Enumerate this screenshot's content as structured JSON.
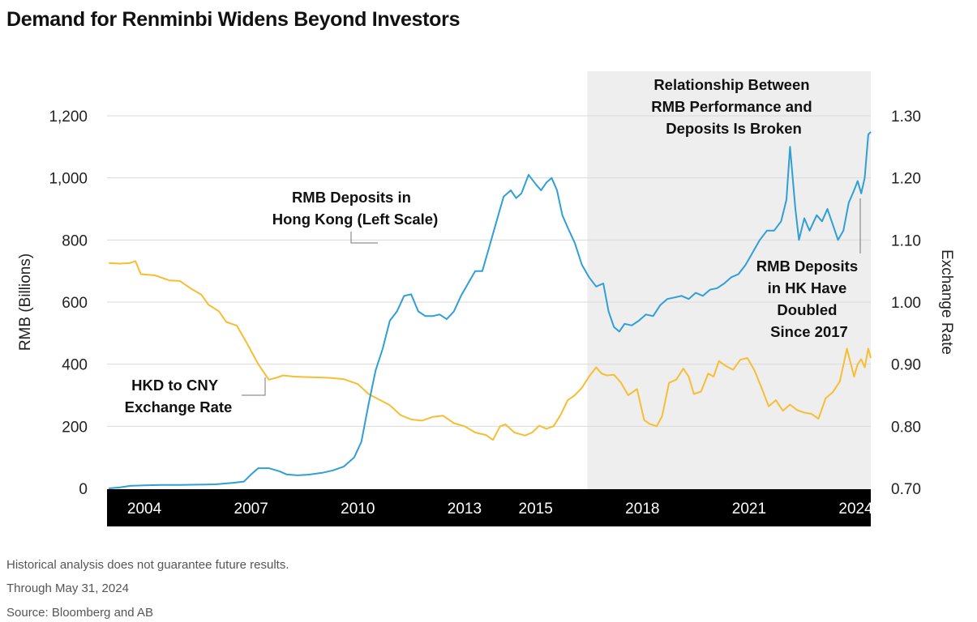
{
  "title": "Demand for Renminbi Widens Beyond Investors",
  "footer": {
    "disclaimer": "Historical analysis does not guarantee future results.",
    "through": "Through May 31, 2024",
    "source": "Source: Bloomberg and AB"
  },
  "colors": {
    "deposits": "#2f9fd6",
    "exchange": "#f6be33",
    "shade": "#eeeeee",
    "xband": "#000000",
    "grid": "#d9d9d9"
  },
  "chart_data": {
    "type": "line",
    "xlim": [
      2002.95,
      2024.42
    ],
    "shade_start": 2016.45,
    "x_ticks": [
      {
        "value": 2004,
        "label": "2004"
      },
      {
        "value": 2007,
        "label": "2007"
      },
      {
        "value": 2010,
        "label": "2010"
      },
      {
        "value": 2013,
        "label": "2013"
      },
      {
        "value": 2015,
        "label": "2015"
      },
      {
        "value": 2018,
        "label": "2018"
      },
      {
        "value": 2021,
        "label": "2021"
      },
      {
        "value": 2024,
        "label": "2024"
      }
    ],
    "y_left": {
      "label": "RMB (Billions)",
      "lim": [
        0,
        1200
      ],
      "ticks": [
        {
          "value": 0,
          "label": "0"
        },
        {
          "value": 200,
          "label": "200"
        },
        {
          "value": 400,
          "label": "400"
        },
        {
          "value": 600,
          "label": "600"
        },
        {
          "value": 800,
          "label": "800"
        },
        {
          "value": 1000,
          "label": "1,000"
        },
        {
          "value": 1200,
          "label": "1,200"
        }
      ]
    },
    "y_right": {
      "label": "Exchange Rate",
      "lim": [
        0.7,
        1.3
      ],
      "ticks": [
        {
          "value": 0.7,
          "label": "0.70"
        },
        {
          "value": 0.8,
          "label": "0.80"
        },
        {
          "value": 0.9,
          "label": "0.90"
        },
        {
          "value": 1.0,
          "label": "1.00"
        },
        {
          "value": 1.1,
          "label": "1.10"
        },
        {
          "value": 1.2,
          "label": "1.20"
        },
        {
          "value": 1.3,
          "label": "1.30"
        }
      ]
    },
    "annotations": {
      "deposits_label": [
        "RMB Deposits in",
        "Hong Kong (Left Scale)"
      ],
      "hkd_label": [
        "HKD to CNY",
        "Exchange Rate"
      ],
      "relationship": [
        "Relationship Between",
        "RMB Performance and",
        "Deposits Is Broken"
      ],
      "doubled": [
        "RMB Deposits",
        "in HK Have",
        "Doubled",
        "Since 2017"
      ]
    },
    "series": [
      {
        "key": "deposits",
        "axis": "left",
        "points": [
          [
            2003.0,
            0
          ],
          [
            2003.3,
            3
          ],
          [
            2003.6,
            8
          ],
          [
            2004.0,
            10
          ],
          [
            2004.5,
            11
          ],
          [
            2005.0,
            11
          ],
          [
            2005.5,
            12
          ],
          [
            2006.0,
            13
          ],
          [
            2006.5,
            18
          ],
          [
            2006.8,
            22
          ],
          [
            2007.0,
            45
          ],
          [
            2007.2,
            65
          ],
          [
            2007.5,
            65
          ],
          [
            2007.8,
            55
          ],
          [
            2008.0,
            45
          ],
          [
            2008.3,
            42
          ],
          [
            2008.6,
            44
          ],
          [
            2009.0,
            50
          ],
          [
            2009.3,
            58
          ],
          [
            2009.6,
            70
          ],
          [
            2009.9,
            100
          ],
          [
            2010.1,
            150
          ],
          [
            2010.3,
            270
          ],
          [
            2010.5,
            380
          ],
          [
            2010.7,
            450
          ],
          [
            2010.9,
            540
          ],
          [
            2011.1,
            570
          ],
          [
            2011.3,
            620
          ],
          [
            2011.5,
            625
          ],
          [
            2011.7,
            570
          ],
          [
            2011.9,
            555
          ],
          [
            2012.1,
            555
          ],
          [
            2012.3,
            560
          ],
          [
            2012.5,
            545
          ],
          [
            2012.7,
            570
          ],
          [
            2012.9,
            620
          ],
          [
            2013.1,
            660
          ],
          [
            2013.3,
            700
          ],
          [
            2013.5,
            700
          ],
          [
            2013.7,
            780
          ],
          [
            2013.9,
            860
          ],
          [
            2014.1,
            940
          ],
          [
            2014.3,
            960
          ],
          [
            2014.45,
            935
          ],
          [
            2014.6,
            950
          ],
          [
            2014.8,
            1010
          ],
          [
            2015.0,
            980
          ],
          [
            2015.15,
            960
          ],
          [
            2015.3,
            985
          ],
          [
            2015.45,
            1000
          ],
          [
            2015.6,
            960
          ],
          [
            2015.75,
            880
          ],
          [
            2015.9,
            840
          ],
          [
            2016.1,
            790
          ],
          [
            2016.3,
            720
          ],
          [
            2016.5,
            680
          ],
          [
            2016.7,
            650
          ],
          [
            2016.9,
            660
          ],
          [
            2017.05,
            570
          ],
          [
            2017.2,
            520
          ],
          [
            2017.35,
            505
          ],
          [
            2017.5,
            530
          ],
          [
            2017.7,
            525
          ],
          [
            2017.9,
            540
          ],
          [
            2018.1,
            560
          ],
          [
            2018.3,
            555
          ],
          [
            2018.5,
            590
          ],
          [
            2018.7,
            610
          ],
          [
            2018.9,
            615
          ],
          [
            2019.1,
            620
          ],
          [
            2019.3,
            610
          ],
          [
            2019.5,
            630
          ],
          [
            2019.7,
            620
          ],
          [
            2019.9,
            640
          ],
          [
            2020.1,
            645
          ],
          [
            2020.3,
            660
          ],
          [
            2020.5,
            680
          ],
          [
            2020.7,
            690
          ],
          [
            2020.9,
            720
          ],
          [
            2021.1,
            760
          ],
          [
            2021.3,
            800
          ],
          [
            2021.5,
            830
          ],
          [
            2021.7,
            830
          ],
          [
            2021.9,
            860
          ],
          [
            2022.05,
            930
          ],
          [
            2022.15,
            1100
          ],
          [
            2022.3,
            900
          ],
          [
            2022.4,
            800
          ],
          [
            2022.55,
            870
          ],
          [
            2022.7,
            830
          ],
          [
            2022.9,
            880
          ],
          [
            2023.05,
            860
          ],
          [
            2023.2,
            900
          ],
          [
            2023.35,
            850
          ],
          [
            2023.5,
            800
          ],
          [
            2023.65,
            830
          ],
          [
            2023.8,
            920
          ],
          [
            2023.95,
            960
          ],
          [
            2024.05,
            990
          ],
          [
            2024.15,
            950
          ],
          [
            2024.25,
            1000
          ],
          [
            2024.35,
            1140
          ],
          [
            2024.42,
            1148
          ]
        ]
      },
      {
        "key": "exchange",
        "axis": "right",
        "points": [
          [
            2003.0,
            1.063
          ],
          [
            2003.3,
            1.062
          ],
          [
            2003.6,
            1.063
          ],
          [
            2003.75,
            1.066
          ],
          [
            2003.9,
            1.045
          ],
          [
            2004.3,
            1.043
          ],
          [
            2004.7,
            1.035
          ],
          [
            2005.0,
            1.034
          ],
          [
            2005.3,
            1.022
          ],
          [
            2005.6,
            1.012
          ],
          [
            2005.8,
            0.996
          ],
          [
            2006.1,
            0.985
          ],
          [
            2006.3,
            0.968
          ],
          [
            2006.6,
            0.962
          ],
          [
            2006.9,
            0.932
          ],
          [
            2007.2,
            0.9
          ],
          [
            2007.5,
            0.875
          ],
          [
            2007.7,
            0.878
          ],
          [
            2007.9,
            0.882
          ],
          [
            2008.2,
            0.88
          ],
          [
            2008.7,
            0.879
          ],
          [
            2009.2,
            0.878
          ],
          [
            2009.6,
            0.876
          ],
          [
            2010.0,
            0.868
          ],
          [
            2010.3,
            0.852
          ],
          [
            2010.6,
            0.843
          ],
          [
            2010.9,
            0.834
          ],
          [
            2011.2,
            0.818
          ],
          [
            2011.5,
            0.811
          ],
          [
            2011.8,
            0.809
          ],
          [
            2012.1,
            0.815
          ],
          [
            2012.4,
            0.817
          ],
          [
            2012.7,
            0.805
          ],
          [
            2013.0,
            0.8
          ],
          [
            2013.3,
            0.79
          ],
          [
            2013.6,
            0.786
          ],
          [
            2013.8,
            0.778
          ],
          [
            2014.0,
            0.8
          ],
          [
            2014.15,
            0.803
          ],
          [
            2014.4,
            0.79
          ],
          [
            2014.7,
            0.785
          ],
          [
            2014.9,
            0.79
          ],
          [
            2015.1,
            0.801
          ],
          [
            2015.3,
            0.796
          ],
          [
            2015.5,
            0.8
          ],
          [
            2015.7,
            0.818
          ],
          [
            2015.9,
            0.842
          ],
          [
            2016.1,
            0.85
          ],
          [
            2016.3,
            0.862
          ],
          [
            2016.5,
            0.88
          ],
          [
            2016.7,
            0.895
          ],
          [
            2016.85,
            0.885
          ],
          [
            2017.0,
            0.882
          ],
          [
            2017.2,
            0.883
          ],
          [
            2017.4,
            0.87
          ],
          [
            2017.6,
            0.85
          ],
          [
            2017.85,
            0.86
          ],
          [
            2018.05,
            0.81
          ],
          [
            2018.2,
            0.804
          ],
          [
            2018.4,
            0.8
          ],
          [
            2018.55,
            0.816
          ],
          [
            2018.75,
            0.87
          ],
          [
            2018.95,
            0.875
          ],
          [
            2019.15,
            0.893
          ],
          [
            2019.3,
            0.88
          ],
          [
            2019.45,
            0.852
          ],
          [
            2019.65,
            0.856
          ],
          [
            2019.85,
            0.885
          ],
          [
            2020.0,
            0.88
          ],
          [
            2020.15,
            0.905
          ],
          [
            2020.35,
            0.897
          ],
          [
            2020.55,
            0.891
          ],
          [
            2020.75,
            0.907
          ],
          [
            2020.95,
            0.91
          ],
          [
            2021.15,
            0.89
          ],
          [
            2021.35,
            0.862
          ],
          [
            2021.55,
            0.832
          ],
          [
            2021.75,
            0.842
          ],
          [
            2021.95,
            0.825
          ],
          [
            2022.15,
            0.835
          ],
          [
            2022.35,
            0.826
          ],
          [
            2022.55,
            0.822
          ],
          [
            2022.75,
            0.82
          ],
          [
            2022.95,
            0.812
          ],
          [
            2023.15,
            0.845
          ],
          [
            2023.35,
            0.855
          ],
          [
            2023.55,
            0.872
          ],
          [
            2023.75,
            0.925
          ],
          [
            2023.95,
            0.88
          ],
          [
            2024.05,
            0.9
          ],
          [
            2024.15,
            0.908
          ],
          [
            2024.25,
            0.895
          ],
          [
            2024.35,
            0.925
          ],
          [
            2024.42,
            0.91
          ]
        ]
      }
    ]
  }
}
